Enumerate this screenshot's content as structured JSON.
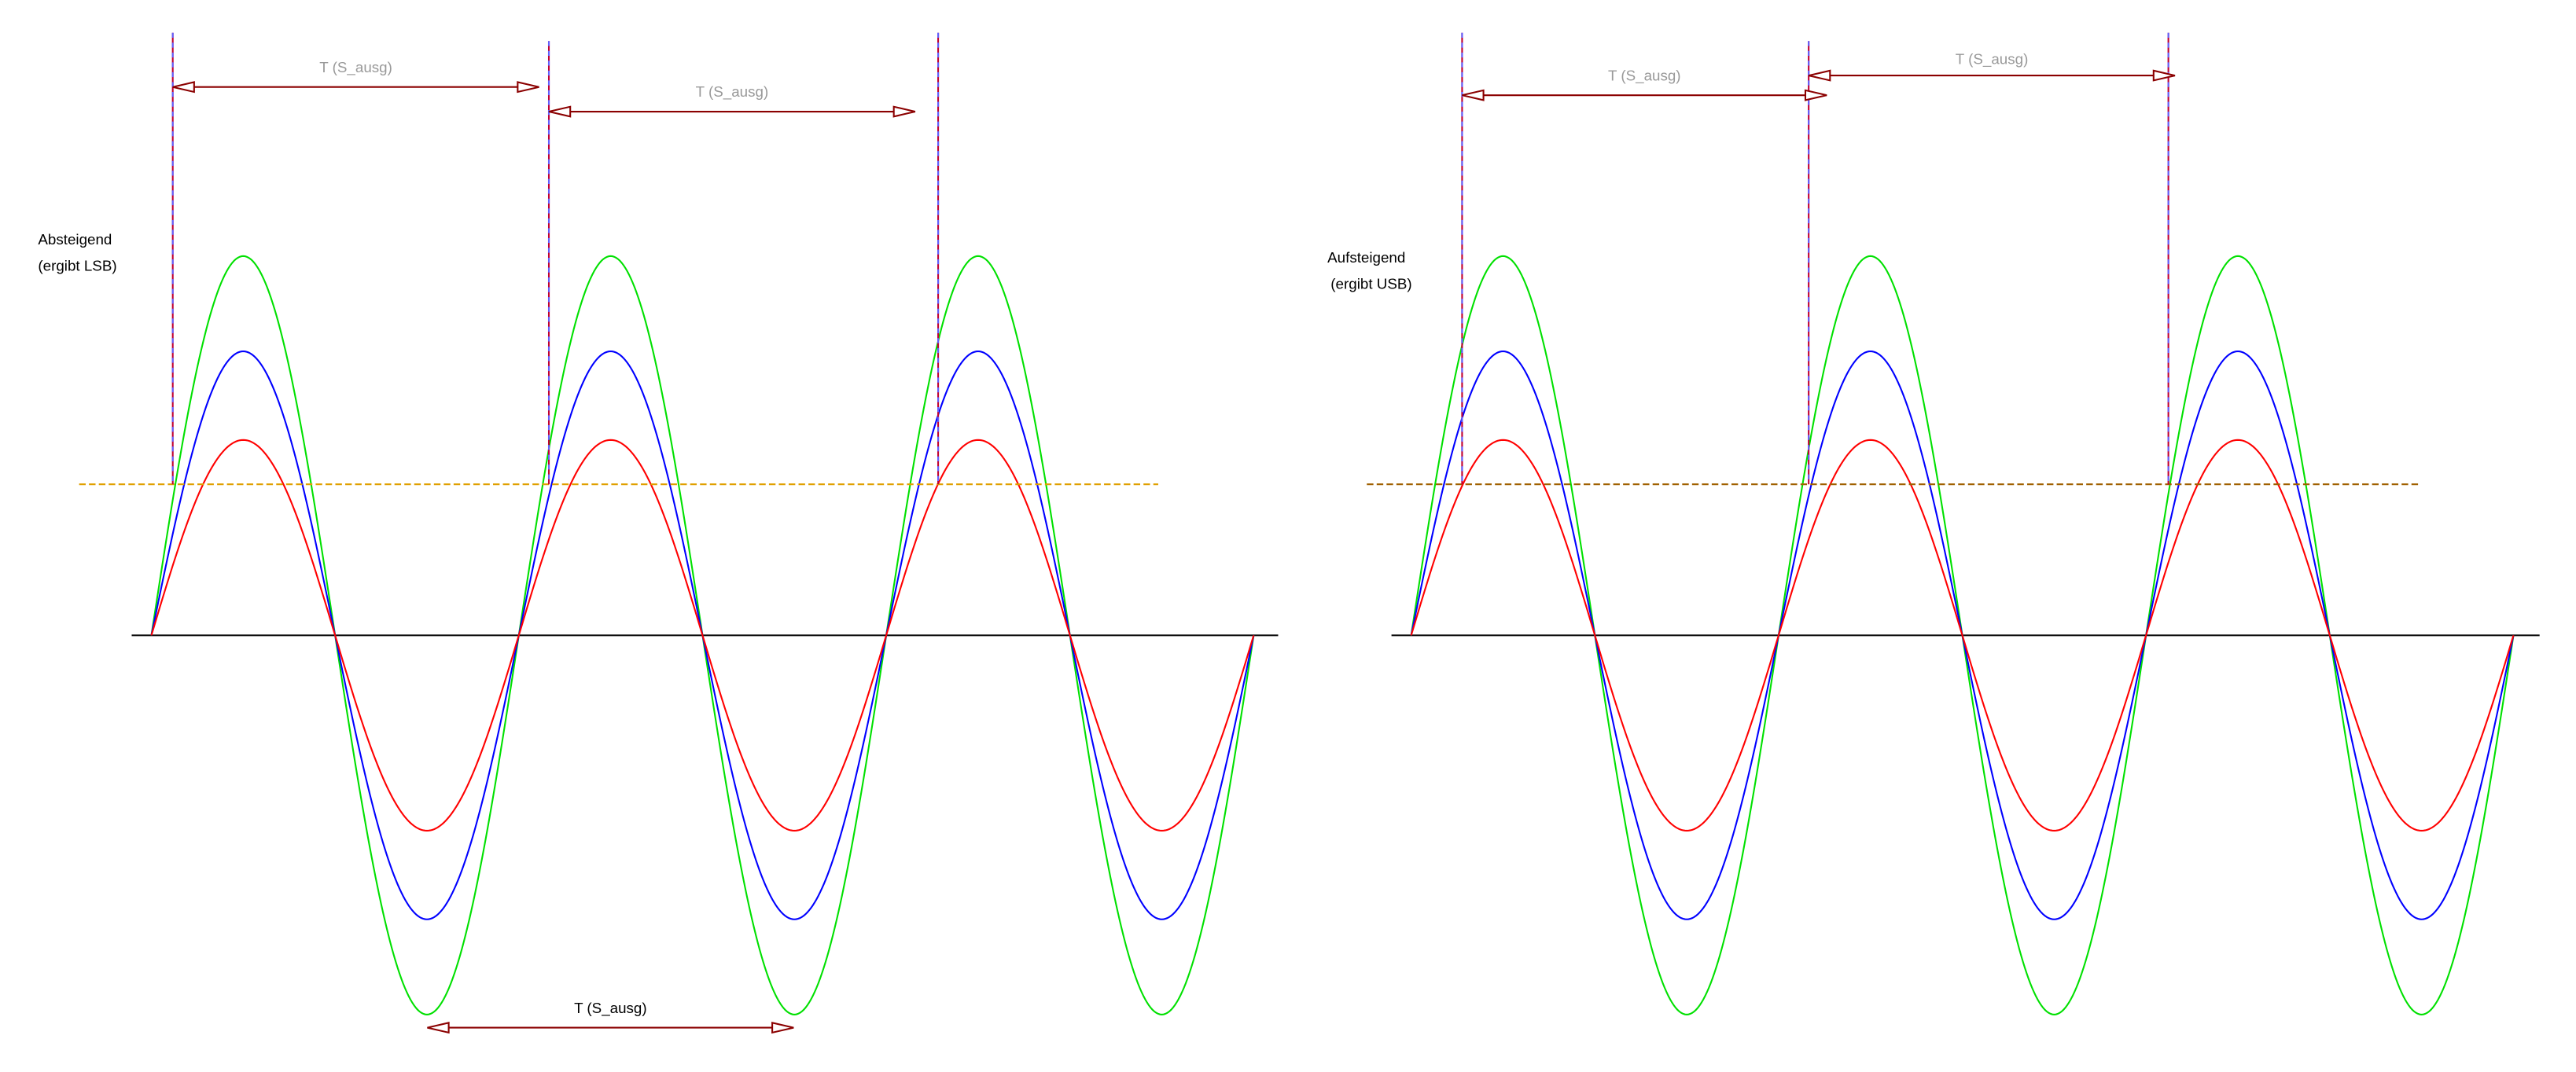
{
  "panels": [
    {
      "title": "Absteigend",
      "subtitle": "(ergibt LSB)",
      "periods": [
        "T (S_ausg)",
        "T (S_ausg)",
        "T (S_ausg)"
      ]
    },
    {
      "title": "Aufsteigend",
      "subtitle": "(ergibt USB)",
      "periods": [
        "T (S_ausg)",
        "T (S_ausg)"
      ]
    }
  ]
}
